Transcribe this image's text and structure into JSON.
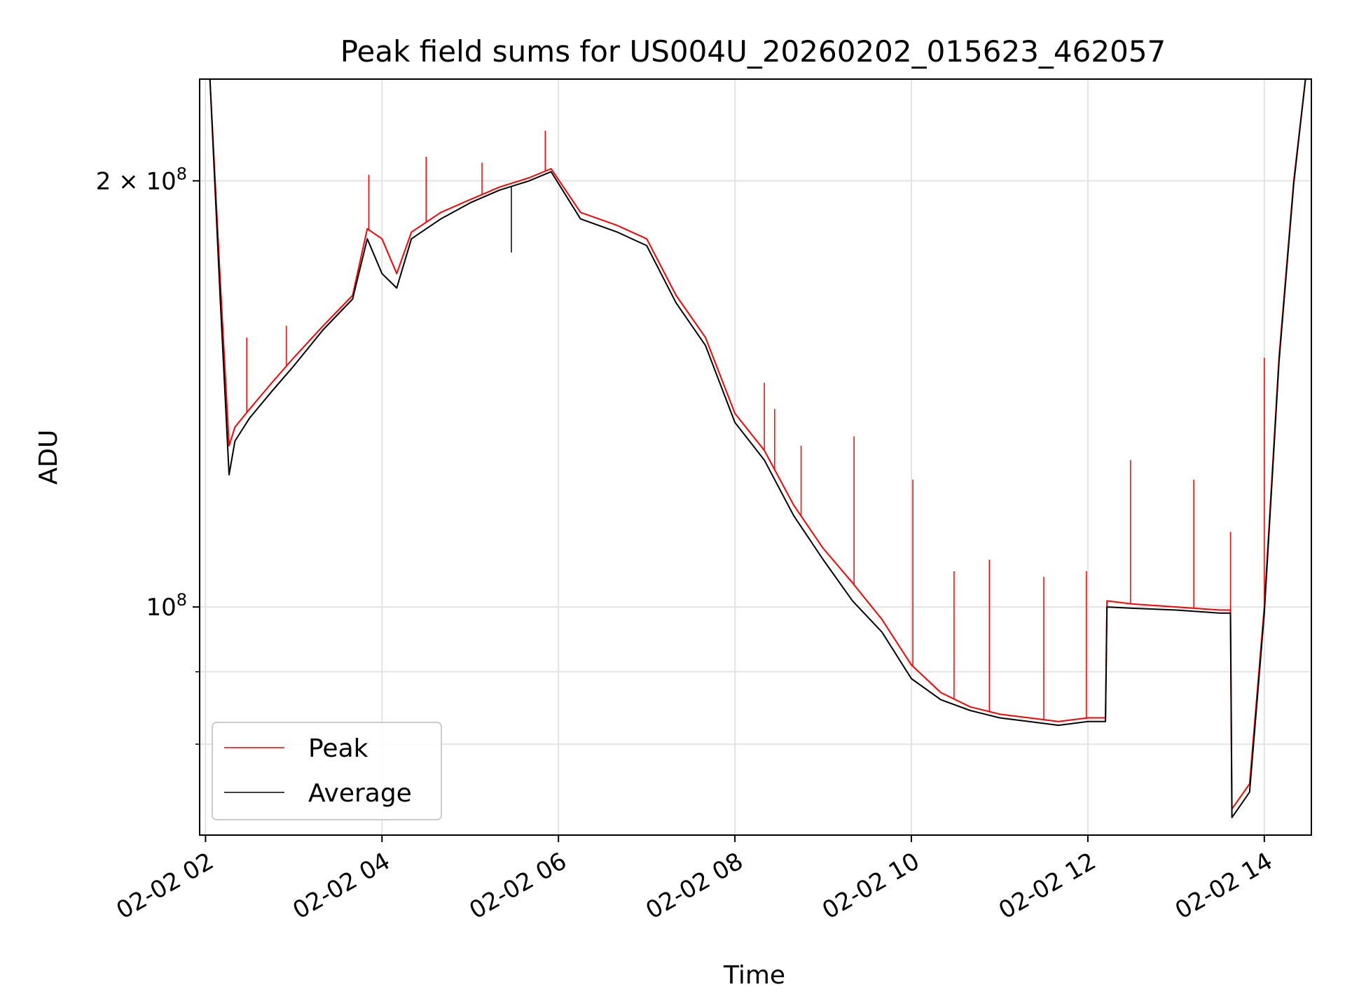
{
  "chart_data": {
    "type": "line",
    "title": "Peak field sums for US004U_20260202_015623_462057",
    "xlabel": "Time",
    "ylabel": "ADU",
    "y_scale": "log",
    "ylim": [
      69000000,
      236000000
    ],
    "xlim": [
      "2026-02-02T01:56",
      "2026-02-02T14:32"
    ],
    "grid": true,
    "legend_placement": "lower-left",
    "x_ticks": [
      {
        "t": "2026-02-02T02:00",
        "label": "02-02 02"
      },
      {
        "t": "2026-02-02T04:00",
        "label": "02-02 04"
      },
      {
        "t": "2026-02-02T06:00",
        "label": "02-02 06"
      },
      {
        "t": "2026-02-02T08:00",
        "label": "02-02 08"
      },
      {
        "t": "2026-02-02T10:00",
        "label": "02-02 10"
      },
      {
        "t": "2026-02-02T12:00",
        "label": "02-02 12"
      },
      {
        "t": "2026-02-02T14:00",
        "label": "02-02 14"
      }
    ],
    "y_ticks_major": [
      {
        "v": 100000000,
        "base": "10",
        "exp": "8",
        "mult": ""
      },
      {
        "v": 200000000,
        "base": "10",
        "exp": "8",
        "mult": "2 × "
      }
    ],
    "y_ticks_minor": [
      80000000,
      90000000
    ],
    "colors": {
      "peak": "#ff0000",
      "average": "#000000",
      "grid": "#e3e3e3"
    },
    "series": [
      {
        "name": "Peak",
        "color": "#ff0000",
        "x": [
          "2026-02-02T01:56",
          "2026-02-02T02:03",
          "2026-02-02T02:10",
          "2026-02-02T02:16",
          "2026-02-02T02:20",
          "2026-02-02T02:30",
          "2026-02-02T02:45",
          "2026-02-02T03:00",
          "2026-02-02T03:20",
          "2026-02-02T03:40",
          "2026-02-02T03:50",
          "2026-02-02T04:00",
          "2026-02-02T04:10",
          "2026-02-02T04:20",
          "2026-02-02T04:40",
          "2026-02-02T05:00",
          "2026-02-02T05:20",
          "2026-02-02T05:40",
          "2026-02-02T05:55",
          "2026-02-02T06:15",
          "2026-02-02T06:40",
          "2026-02-02T07:00",
          "2026-02-02T07:20",
          "2026-02-02T07:40",
          "2026-02-02T08:00",
          "2026-02-02T08:20",
          "2026-02-02T08:40",
          "2026-02-02T09:00",
          "2026-02-02T09:20",
          "2026-02-02T09:40",
          "2026-02-02T10:00",
          "2026-02-02T10:20",
          "2026-02-02T10:40",
          "2026-02-02T11:00",
          "2026-02-02T11:20",
          "2026-02-02T11:40",
          "2026-02-02T12:00",
          "2026-02-02T12:12",
          "2026-02-02T12:13",
          "2026-02-02T12:30",
          "2026-02-02T13:00",
          "2026-02-02T13:30",
          "2026-02-02T13:37",
          "2026-02-02T13:38",
          "2026-02-02T13:50",
          "2026-02-02T14:00",
          "2026-02-02T14:10",
          "2026-02-02T14:20",
          "2026-02-02T14:28"
        ],
        "values": [
          236000000,
          236000000,
          170000000,
          130000000,
          134000000,
          138000000,
          144000000,
          150000000,
          158000000,
          166000000,
          185000000,
          182000000,
          172000000,
          184000000,
          190000000,
          194000000,
          198000000,
          201000000,
          204000000,
          190000000,
          186000000,
          182000000,
          166000000,
          155000000,
          137000000,
          129000000,
          118000000,
          110000000,
          104000000,
          98000000,
          91000000,
          87000000,
          85000000,
          84000000,
          83500000,
          83000000,
          83500000,
          83500000,
          101000000,
          100500000,
          100000000,
          99500000,
          99500000,
          72000000,
          75000000,
          100000000,
          150000000,
          200000000,
          236000000
        ],
        "spikes": [
          {
            "t": "2026-02-02T02:28",
            "v": 155000000
          },
          {
            "t": "2026-02-02T02:55",
            "v": 158000000
          },
          {
            "t": "2026-02-02T03:51",
            "v": 202000000
          },
          {
            "t": "2026-02-02T04:30",
            "v": 208000000
          },
          {
            "t": "2026-02-02T05:08",
            "v": 206000000
          },
          {
            "t": "2026-02-02T05:51",
            "v": 217000000
          },
          {
            "t": "2026-02-02T08:20",
            "v": 144000000
          },
          {
            "t": "2026-02-02T08:27",
            "v": 138000000
          },
          {
            "t": "2026-02-02T08:45",
            "v": 130000000
          },
          {
            "t": "2026-02-02T09:21",
            "v": 132000000
          },
          {
            "t": "2026-02-02T10:01",
            "v": 123000000
          },
          {
            "t": "2026-02-02T10:29",
            "v": 106000000
          },
          {
            "t": "2026-02-02T10:53",
            "v": 108000000
          },
          {
            "t": "2026-02-02T11:30",
            "v": 105000000
          },
          {
            "t": "2026-02-02T11:59",
            "v": 106000000
          },
          {
            "t": "2026-02-02T12:29",
            "v": 127000000
          },
          {
            "t": "2026-02-02T13:12",
            "v": 123000000
          },
          {
            "t": "2026-02-02T13:37",
            "v": 113000000
          },
          {
            "t": "2026-02-02T14:00",
            "v": 150000000
          }
        ]
      },
      {
        "name": "Average",
        "color": "#000000",
        "x": [
          "2026-02-02T01:56",
          "2026-02-02T02:03",
          "2026-02-02T02:10",
          "2026-02-02T02:16",
          "2026-02-02T02:20",
          "2026-02-02T02:30",
          "2026-02-02T02:45",
          "2026-02-02T03:00",
          "2026-02-02T03:20",
          "2026-02-02T03:40",
          "2026-02-02T03:50",
          "2026-02-02T04:00",
          "2026-02-02T04:10",
          "2026-02-02T04:20",
          "2026-02-02T04:40",
          "2026-02-02T05:00",
          "2026-02-02T05:20",
          "2026-02-02T05:40",
          "2026-02-02T05:55",
          "2026-02-02T06:15",
          "2026-02-02T06:40",
          "2026-02-02T07:00",
          "2026-02-02T07:20",
          "2026-02-02T07:40",
          "2026-02-02T08:00",
          "2026-02-02T08:20",
          "2026-02-02T08:40",
          "2026-02-02T09:00",
          "2026-02-02T09:20",
          "2026-02-02T09:40",
          "2026-02-02T10:00",
          "2026-02-02T10:20",
          "2026-02-02T10:40",
          "2026-02-02T11:00",
          "2026-02-02T11:20",
          "2026-02-02T11:40",
          "2026-02-02T12:00",
          "2026-02-02T12:12",
          "2026-02-02T12:13",
          "2026-02-02T12:30",
          "2026-02-02T13:00",
          "2026-02-02T13:30",
          "2026-02-02T13:37",
          "2026-02-02T13:38",
          "2026-02-02T13:50",
          "2026-02-02T14:00",
          "2026-02-02T14:10",
          "2026-02-02T14:20",
          "2026-02-02T14:28"
        ],
        "values": [
          236000000,
          236000000,
          165000000,
          124000000,
          131000000,
          136000000,
          142000000,
          148000000,
          157000000,
          165000000,
          182000000,
          172000000,
          168000000,
          182000000,
          188000000,
          193000000,
          197000000,
          200000000,
          203000000,
          188000000,
          184000000,
          180000000,
          164000000,
          153000000,
          135000000,
          127000000,
          116000000,
          108000000,
          101000000,
          96000000,
          89000000,
          86000000,
          84500000,
          83500000,
          83000000,
          82500000,
          83000000,
          83000000,
          100000000,
          99800000,
          99500000,
          99000000,
          99000000,
          71000000,
          74000000,
          99000000,
          149000000,
          199000000,
          236000000
        ],
        "spikes": [
          {
            "t": "2026-02-02T05:28",
            "v": 178000000
          }
        ]
      }
    ]
  }
}
